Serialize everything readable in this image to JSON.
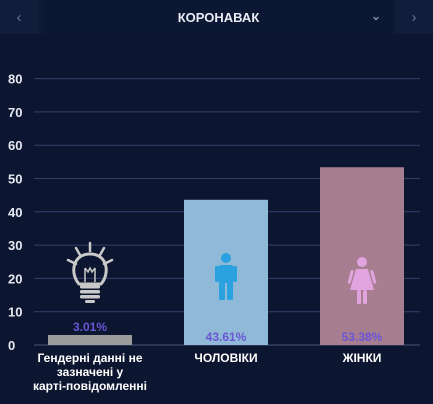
{
  "header": {
    "title": "КОРОНАВАК",
    "prev_icon": "chevron-left-icon",
    "next_icon": "chevron-right-icon",
    "dropdown_icon": "chevron-down-icon"
  },
  "chart_data": {
    "type": "bar",
    "categories": [
      [
        "Гендерні данні не",
        "зазначені у",
        "карті-повідомленні"
      ],
      [
        "ЧОЛОВІКИ"
      ],
      [
        "ЖІНКИ"
      ]
    ],
    "values": [
      3.01,
      43.61,
      53.38
    ],
    "data_labels": [
      "3.01%",
      "43.61%",
      "53.38%"
    ],
    "colors": [
      "#9c9c9c",
      "#8fb9d6",
      "#a77e90"
    ],
    "icons": [
      "lightbulb-icon",
      "male-icon",
      "female-icon"
    ],
    "icon_colors": [
      "#c9c9c9",
      "#2aa2e0",
      "#e2a4e0"
    ],
    "yticks": [
      0,
      10,
      20,
      30,
      40,
      50,
      60,
      70,
      80
    ],
    "ylim": [
      0,
      85
    ],
    "grid": true
  }
}
